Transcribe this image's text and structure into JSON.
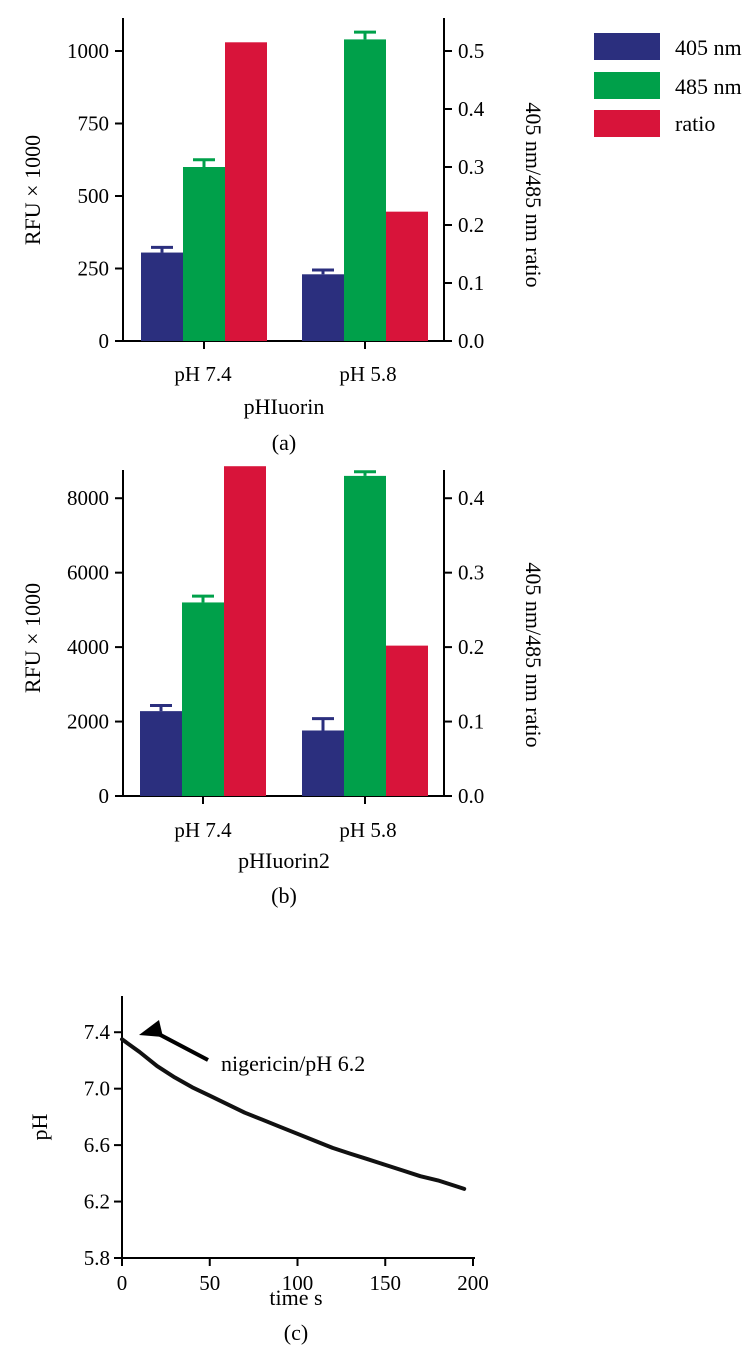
{
  "legend": [
    {
      "label": "405 nm",
      "color": "#2b2f7e"
    },
    {
      "label": "485 nm",
      "color": "#00a04a"
    },
    {
      "label": "ratio",
      "color": "#d8143a"
    }
  ],
  "chart_data": [
    {
      "panel": "(a)",
      "type": "bar",
      "title": "",
      "xlabel": "pHIuorin",
      "ylabel": "RFU × 1000",
      "y2label": "405 nm/485 nm ratio",
      "categories": [
        "pH 7.4",
        "pH 5.8"
      ],
      "ylim": [
        0,
        1100
      ],
      "y2lim": [
        0,
        0.55
      ],
      "yticks": [
        "0",
        "250",
        "500",
        "750",
        "1000"
      ],
      "y2ticks": [
        "0.0",
        "0.1",
        "0.2",
        "0.3",
        "0.4",
        "0.5"
      ],
      "series": [
        {
          "name": "405 nm",
          "axis": "left",
          "values": [
            305,
            230
          ],
          "errors": [
            18,
            15
          ]
        },
        {
          "name": "485 nm",
          "axis": "left",
          "values": [
            600,
            1040
          ],
          "errors": [
            25,
            25
          ]
        },
        {
          "name": "ratio",
          "axis": "right",
          "values": [
            0.515,
            0.223
          ],
          "errors": [
            0,
            0
          ]
        }
      ],
      "legend_position": "top-right"
    },
    {
      "panel": "(b)",
      "type": "bar",
      "title": "",
      "xlabel": "pHIuorin2",
      "ylabel": "RFU × 1000",
      "y2label": "405 nm/485 nm ratio",
      "categories": [
        "pH 7.4",
        "pH 5.8"
      ],
      "ylim": [
        0,
        9000
      ],
      "y2lim": [
        0,
        0.45
      ],
      "yticks": [
        "0",
        "2000",
        "4000",
        "6000",
        "8000"
      ],
      "y2ticks": [
        "0.0",
        "0.1",
        "0.2",
        "0.3",
        "0.4"
      ],
      "series": [
        {
          "name": "405 nm",
          "axis": "left",
          "values": [
            2280,
            1760
          ],
          "errors": [
            150,
            320
          ]
        },
        {
          "name": "485 nm",
          "axis": "left",
          "values": [
            5200,
            8600
          ],
          "errors": [
            170,
            110
          ]
        },
        {
          "name": "ratio",
          "axis": "right",
          "values": [
            0.443,
            0.202
          ],
          "errors": [
            0,
            0
          ]
        }
      ]
    },
    {
      "panel": "(c)",
      "type": "line",
      "title": "",
      "xlabel": "time s",
      "ylabel": "pH",
      "xlim": [
        0,
        200
      ],
      "ylim": [
        5.8,
        7.6
      ],
      "xticks": [
        "0",
        "50",
        "100",
        "150",
        "200"
      ],
      "yticks": [
        "5.8",
        "6.2",
        "6.6",
        "7.0",
        "7.4"
      ],
      "series": [
        {
          "x": [
            0,
            10,
            20,
            30,
            40,
            50,
            60,
            70,
            80,
            90,
            100,
            110,
            120,
            130,
            140,
            150,
            160,
            170,
            180,
            190,
            195
          ],
          "y": [
            7.35,
            7.26,
            7.16,
            7.08,
            7.01,
            6.95,
            6.89,
            6.83,
            6.78,
            6.73,
            6.68,
            6.63,
            6.58,
            6.54,
            6.5,
            6.46,
            6.42,
            6.38,
            6.35,
            6.31,
            6.29
          ]
        }
      ],
      "annotation": "nigericin/pH 6.2",
      "annotation_point": [
        0,
        7.38
      ]
    }
  ]
}
